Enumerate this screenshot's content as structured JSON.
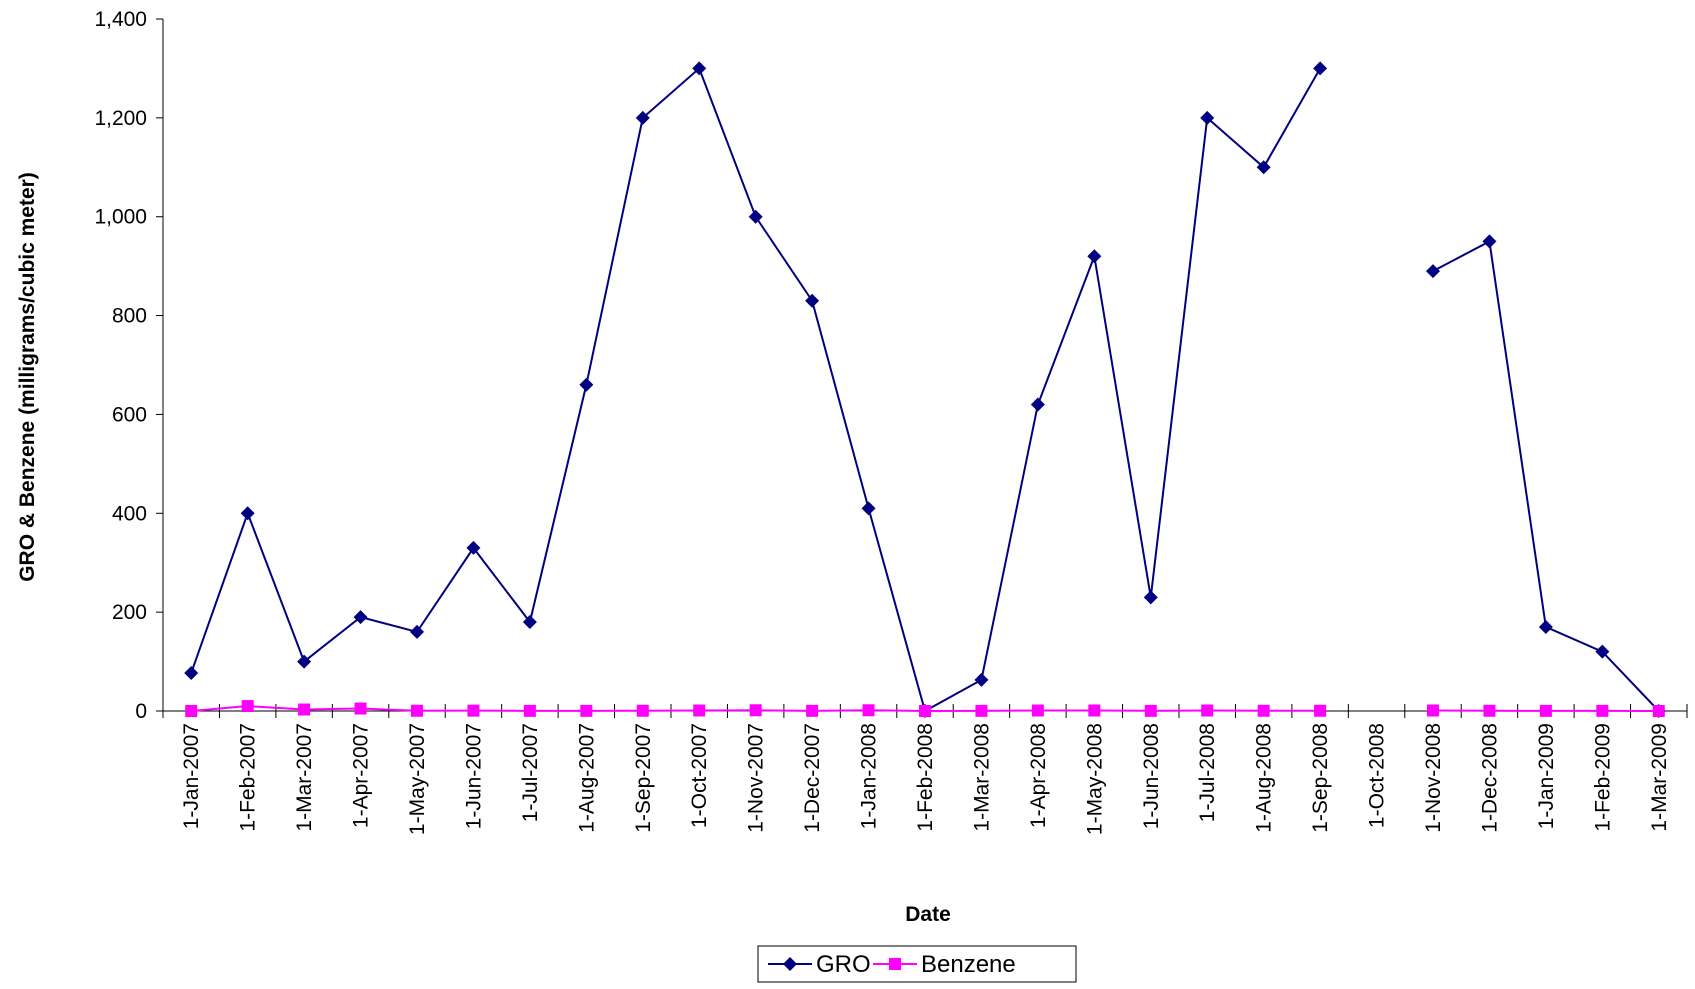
{
  "chart_data": {
    "type": "line",
    "title": "",
    "xlabel": "Date",
    "ylabel": "GRO & Benzene (milligrams/cubic meter)",
    "ylim": [
      0,
      1400
    ],
    "yticks": [
      "0",
      "200",
      "400",
      "600",
      "800",
      "1,000",
      "1,200",
      "1,400"
    ],
    "categories": [
      "1-Jan-2007",
      "1-Feb-2007",
      "1-Mar-2007",
      "1-Apr-2007",
      "1-May-2007",
      "1-Jun-2007",
      "1-Jul-2007",
      "1-Aug-2007",
      "1-Sep-2007",
      "1-Oct-2007",
      "1-Nov-2007",
      "1-Dec-2007",
      "1-Jan-2008",
      "1-Feb-2008",
      "1-Mar-2008",
      "1-Apr-2008",
      "1-May-2008",
      "1-Jun-2008",
      "1-Jul-2008",
      "1-Aug-2008",
      "1-Sep-2008",
      "1-Oct-2008",
      "1-Nov-2008",
      "1-Dec-2008",
      "1-Jan-2009",
      "1-Feb-2009",
      "1-Mar-2009"
    ],
    "grid": false,
    "legend_position": "bottom",
    "series": [
      {
        "name": "GRO",
        "color": "#000080",
        "marker": "diamond",
        "values": [
          77,
          400,
          100,
          190,
          160,
          330,
          180,
          660,
          1200,
          1300,
          1000,
          830,
          410,
          0,
          63,
          620,
          920,
          230,
          1200,
          1100,
          1300,
          null,
          890,
          950,
          170,
          120,
          0
        ]
      },
      {
        "name": "Benzene",
        "color": "#FF00FF",
        "marker": "square",
        "values": [
          0,
          10,
          3,
          5,
          0.5,
          0.7,
          0.3,
          0.3,
          0.5,
          1,
          1.5,
          0.3,
          1.5,
          0,
          0.3,
          1,
          1,
          0.3,
          1,
          0.5,
          0.5,
          null,
          1,
          0.5,
          0.3,
          0.3,
          0
        ]
      }
    ]
  }
}
